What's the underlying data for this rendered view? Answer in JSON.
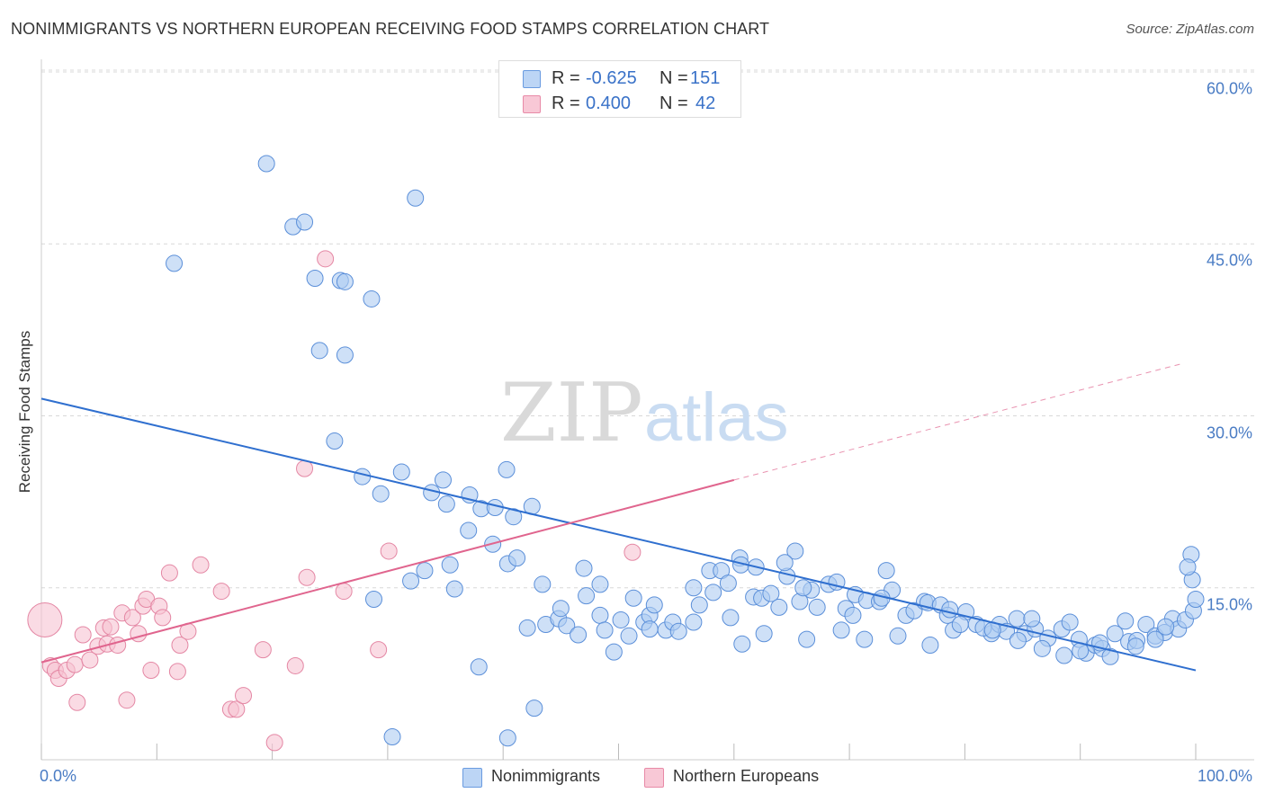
{
  "title": "NONIMMIGRANTS VS NORTHERN EUROPEAN RECEIVING FOOD STAMPS CORRELATION CHART",
  "source": "Source: ZipAtlas.com",
  "watermark": {
    "zip": "ZIP",
    "atlas": "atlas"
  },
  "stats": {
    "r_label": "R =",
    "n_label": "N =",
    "rows": [
      {
        "r": "-0.625",
        "n": "151",
        "fill": "#bcd5f5",
        "stroke": "#6a9be0"
      },
      {
        "r": "0.400",
        "n": "42",
        "fill": "#f8c8d6",
        "stroke": "#e88aa7"
      }
    ]
  },
  "legend": [
    "Nonimmigrants",
    "Northern Europeans"
  ],
  "colors": {
    "blue_fill": "#aecbf2",
    "blue_stroke": "#5b8fd9",
    "blue_line": "#2f6fcf",
    "pink_fill": "#f7c3d2",
    "pink_stroke": "#e487a4",
    "pink_line": "#e0658e",
    "grid": "#d8d8d8",
    "tick_text": "#4a7cc4"
  },
  "chart_data": {
    "type": "scatter",
    "title": "NONIMMIGRANTS VS NORTHERN EUROPEAN RECEIVING FOOD STAMPS CORRELATION CHART",
    "xlabel": "",
    "ylabel": "Receiving Food Stamps",
    "xlim": [
      0,
      100
    ],
    "ylim": [
      0,
      60
    ],
    "x_tick_labels": [
      "0.0%",
      "100.0%"
    ],
    "y_ticks": [
      15,
      30,
      45,
      60
    ],
    "y_tick_labels": [
      "15.0%",
      "30.0%",
      "45.0%",
      "60.0%"
    ],
    "grid": "horizontal dashed",
    "legend_position": "bottom-center",
    "series": [
      {
        "name": "Nonimmigrants",
        "R": -0.625,
        "N": 151,
        "trend": {
          "x0": 0,
          "y0": 31.5,
          "x1": 100,
          "y1": 7.8
        },
        "points": [
          [
            19.5,
            52.0
          ],
          [
            32.4,
            49.0
          ],
          [
            11.5,
            43.3
          ],
          [
            21.8,
            46.5
          ],
          [
            22.8,
            46.9
          ],
          [
            23.7,
            42.0
          ],
          [
            25.9,
            41.8
          ],
          [
            26.3,
            41.7
          ],
          [
            28.6,
            40.2
          ],
          [
            24.1,
            35.7
          ],
          [
            26.3,
            35.3
          ],
          [
            25.4,
            27.8
          ],
          [
            27.8,
            24.7
          ],
          [
            34.8,
            24.4
          ],
          [
            40.3,
            25.3
          ],
          [
            31.2,
            25.1
          ],
          [
            29.4,
            23.2
          ],
          [
            33.8,
            23.3
          ],
          [
            35.1,
            22.3
          ],
          [
            37.1,
            23.1
          ],
          [
            38.1,
            21.9
          ],
          [
            39.3,
            22.0
          ],
          [
            40.9,
            21.2
          ],
          [
            37.0,
            20.0
          ],
          [
            35.4,
            17.0
          ],
          [
            32.0,
            15.6
          ],
          [
            33.2,
            16.5
          ],
          [
            35.8,
            14.9
          ],
          [
            39.1,
            18.8
          ],
          [
            40.4,
            17.1
          ],
          [
            41.2,
            17.6
          ],
          [
            42.5,
            22.1
          ],
          [
            28.8,
            14.0
          ],
          [
            37.9,
            8.1
          ],
          [
            30.4,
            2.0
          ],
          [
            40.4,
            1.9
          ],
          [
            42.7,
            4.5
          ],
          [
            43.4,
            15.3
          ],
          [
            42.1,
            11.5
          ],
          [
            43.7,
            11.8
          ],
          [
            44.8,
            12.3
          ],
          [
            45.5,
            11.7
          ],
          [
            46.5,
            10.9
          ],
          [
            47.2,
            14.3
          ],
          [
            48.4,
            15.3
          ],
          [
            48.4,
            12.6
          ],
          [
            48.8,
            11.3
          ],
          [
            49.6,
            9.4
          ],
          [
            50.2,
            12.2
          ],
          [
            50.9,
            10.8
          ],
          [
            51.3,
            14.1
          ],
          [
            52.2,
            12.0
          ],
          [
            52.7,
            12.6
          ],
          [
            53.1,
            13.5
          ],
          [
            54.1,
            11.3
          ],
          [
            54.7,
            12.0
          ],
          [
            56.5,
            12.0
          ],
          [
            57.0,
            13.5
          ],
          [
            57.9,
            16.5
          ],
          [
            58.9,
            16.5
          ],
          [
            59.5,
            15.4
          ],
          [
            60.5,
            17.6
          ],
          [
            60.6,
            17.0
          ],
          [
            61.7,
            14.2
          ],
          [
            62.4,
            14.1
          ],
          [
            63.2,
            14.5
          ],
          [
            63.9,
            13.3
          ],
          [
            64.6,
            16.0
          ],
          [
            65.3,
            18.2
          ],
          [
            65.7,
            13.8
          ],
          [
            66.7,
            14.8
          ],
          [
            67.2,
            13.3
          ],
          [
            68.2,
            15.3
          ],
          [
            68.9,
            15.5
          ],
          [
            69.7,
            13.2
          ],
          [
            70.5,
            14.4
          ],
          [
            71.5,
            13.9
          ],
          [
            72.6,
            13.8
          ],
          [
            73.2,
            16.5
          ],
          [
            73.7,
            14.8
          ],
          [
            74.9,
            12.6
          ],
          [
            75.6,
            13.0
          ],
          [
            76.5,
            13.8
          ],
          [
            76.8,
            13.7
          ],
          [
            77.9,
            13.5
          ],
          [
            78.5,
            12.6
          ],
          [
            79.0,
            11.3
          ],
          [
            80.1,
            12.9
          ],
          [
            81.0,
            11.8
          ],
          [
            82.3,
            11.0
          ],
          [
            83.0,
            11.8
          ],
          [
            83.6,
            11.2
          ],
          [
            84.5,
            12.3
          ],
          [
            85.2,
            11.0
          ],
          [
            86.1,
            11.4
          ],
          [
            87.2,
            10.6
          ],
          [
            88.4,
            11.4
          ],
          [
            89.1,
            12.0
          ],
          [
            89.9,
            10.5
          ],
          [
            90.5,
            9.3
          ],
          [
            91.3,
            10.0
          ],
          [
            91.9,
            9.7
          ],
          [
            93.0,
            11.0
          ],
          [
            93.9,
            12.1
          ],
          [
            94.2,
            10.3
          ],
          [
            94.9,
            10.4
          ],
          [
            95.7,
            11.8
          ],
          [
            96.5,
            10.8
          ],
          [
            97.3,
            11.1
          ],
          [
            98.0,
            12.3
          ],
          [
            98.5,
            11.4
          ],
          [
            99.1,
            12.2
          ],
          [
            99.8,
            13.0
          ],
          [
            100.0,
            14.0
          ],
          [
            99.7,
            15.7
          ],
          [
            99.6,
            17.9
          ],
          [
            99.3,
            16.8
          ],
          [
            52.7,
            11.4
          ],
          [
            56.5,
            15.0
          ],
          [
            58.2,
            14.6
          ],
          [
            59.7,
            12.4
          ],
          [
            61.9,
            16.8
          ],
          [
            64.4,
            17.2
          ],
          [
            66.3,
            10.5
          ],
          [
            69.3,
            11.3
          ],
          [
            71.3,
            10.5
          ],
          [
            74.2,
            10.8
          ],
          [
            77.0,
            10.0
          ],
          [
            79.6,
            11.8
          ],
          [
            81.6,
            11.5
          ],
          [
            84.6,
            10.4
          ],
          [
            86.7,
            9.7
          ],
          [
            88.6,
            9.1
          ],
          [
            90.0,
            9.5
          ],
          [
            92.6,
            9.0
          ],
          [
            94.8,
            9.9
          ],
          [
            96.5,
            10.5
          ],
          [
            47.0,
            16.7
          ],
          [
            45.0,
            13.2
          ],
          [
            55.2,
            11.2
          ],
          [
            60.7,
            10.1
          ],
          [
            66.0,
            15.0
          ],
          [
            72.8,
            14.1
          ],
          [
            78.7,
            13.1
          ],
          [
            82.4,
            11.3
          ],
          [
            85.8,
            12.3
          ],
          [
            91.7,
            10.2
          ],
          [
            97.4,
            11.6
          ],
          [
            62.6,
            11.0
          ],
          [
            70.3,
            12.6
          ]
        ]
      },
      {
        "name": "Northern Europeans",
        "R": 0.4,
        "N": 42,
        "trend": {
          "x0": 0,
          "y0": 8.5,
          "x1": 60,
          "y1": 24.4,
          "dashed_to_x": 99,
          "dashed_to_y": 34.6
        },
        "points": [
          [
            0.3,
            12.2
          ],
          [
            0.8,
            8.2
          ],
          [
            1.2,
            7.8
          ],
          [
            1.5,
            7.1
          ],
          [
            2.2,
            7.8
          ],
          [
            2.9,
            8.3
          ],
          [
            3.1,
            5.0
          ],
          [
            3.6,
            10.9
          ],
          [
            4.2,
            8.7
          ],
          [
            4.9,
            9.9
          ],
          [
            5.4,
            11.5
          ],
          [
            5.7,
            10.1
          ],
          [
            6.0,
            11.6
          ],
          [
            6.6,
            10.0
          ],
          [
            7.0,
            12.8
          ],
          [
            7.4,
            5.2
          ],
          [
            7.9,
            12.4
          ],
          [
            8.4,
            11.0
          ],
          [
            8.8,
            13.4
          ],
          [
            9.1,
            14.0
          ],
          [
            9.5,
            7.8
          ],
          [
            10.2,
            13.4
          ],
          [
            10.5,
            12.4
          ],
          [
            11.1,
            16.3
          ],
          [
            11.8,
            7.7
          ],
          [
            12.0,
            10.0
          ],
          [
            12.7,
            11.2
          ],
          [
            13.8,
            17.0
          ],
          [
            15.6,
            14.7
          ],
          [
            16.4,
            4.4
          ],
          [
            16.9,
            4.4
          ],
          [
            17.5,
            5.6
          ],
          [
            19.2,
            9.6
          ],
          [
            20.2,
            1.5
          ],
          [
            22.0,
            8.2
          ],
          [
            22.8,
            25.4
          ],
          [
            23.0,
            15.9
          ],
          [
            24.6,
            43.7
          ],
          [
            26.2,
            14.7
          ],
          [
            29.2,
            9.6
          ],
          [
            30.1,
            18.2
          ],
          [
            51.2,
            18.1
          ]
        ]
      }
    ]
  }
}
